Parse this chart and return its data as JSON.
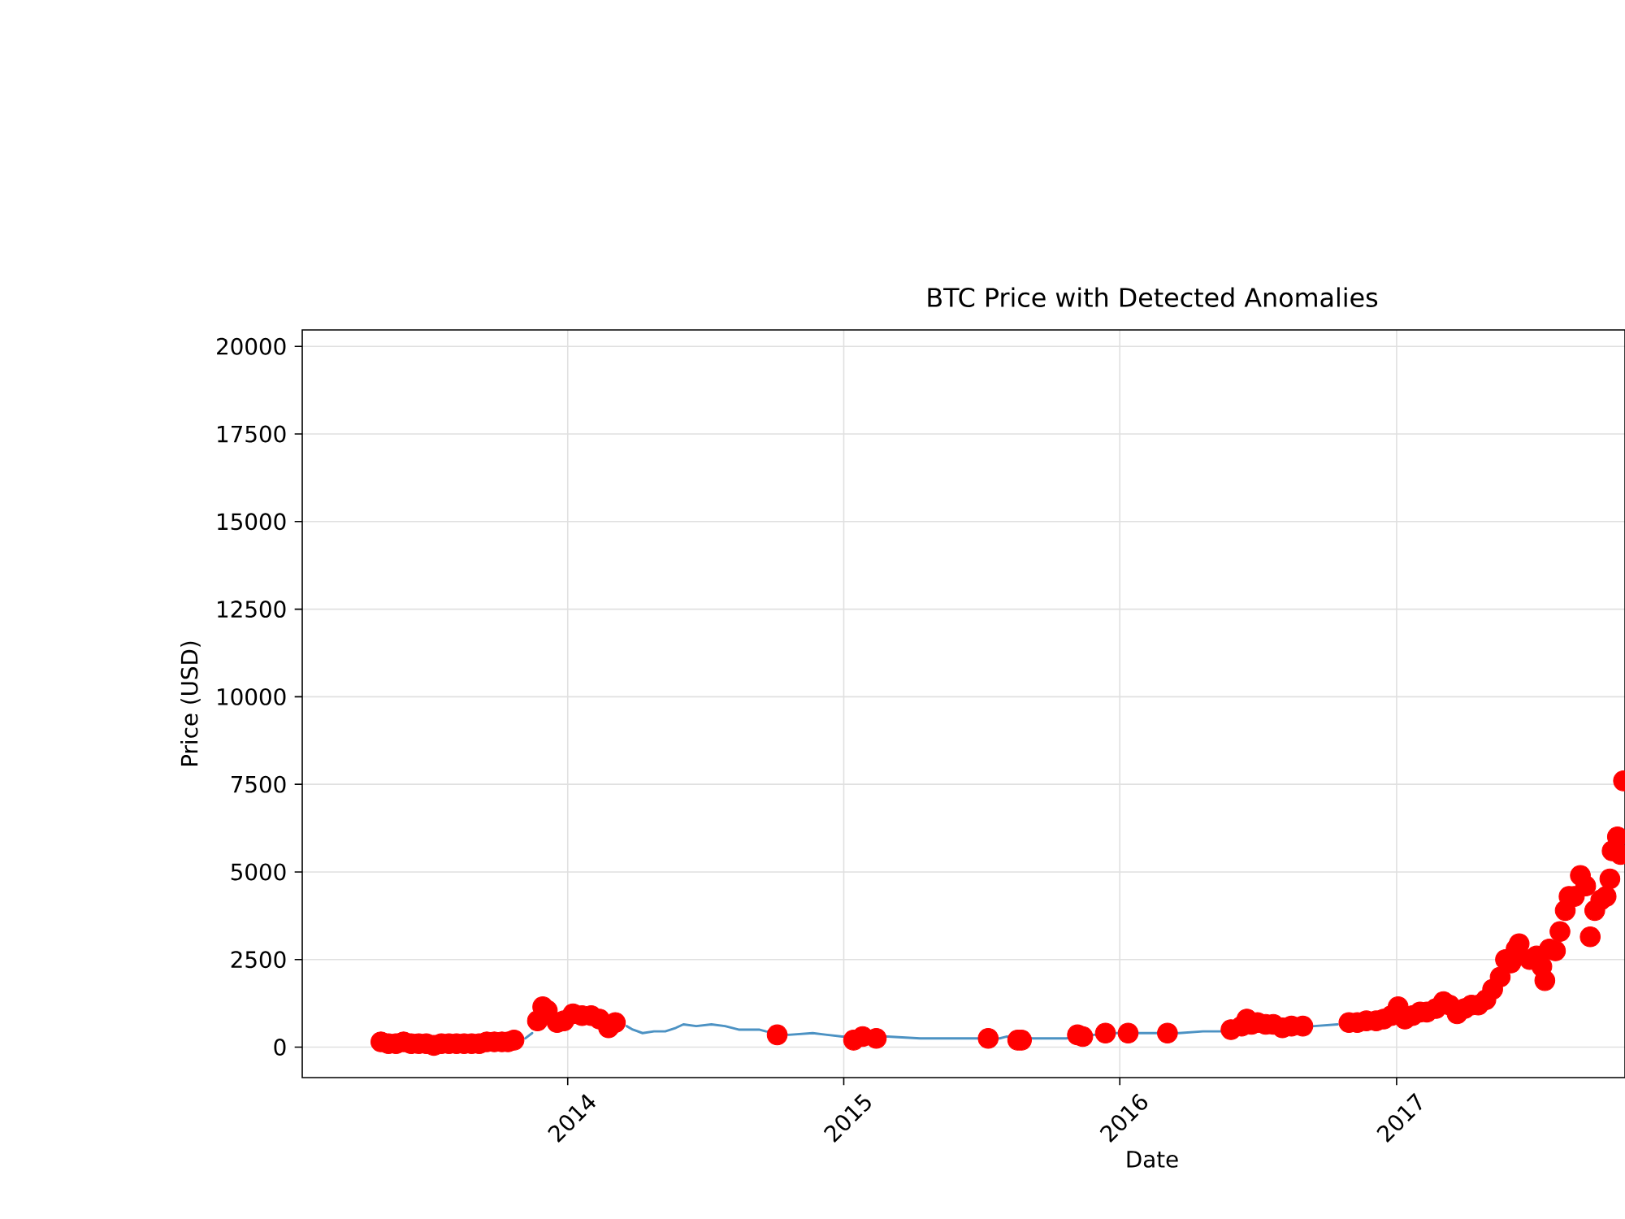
{
  "chart_data": {
    "type": "line",
    "title": "BTC Price with Detected Anomalies",
    "xlabel": "Date",
    "ylabel": "Price (USD)",
    "xlim": [
      "2013-01-15",
      "2017-10-30"
    ],
    "ylim": [
      -870,
      20470
    ],
    "xticks": [
      "2014",
      "2015",
      "2016",
      "2017"
    ],
    "yticks": [
      0,
      2500,
      5000,
      7500,
      10000,
      12500,
      15000,
      17500,
      20000
    ],
    "grid": true,
    "series": [
      {
        "color": "#4c92c3",
        "x": [
          "2013-11-06",
          "2013-11-15",
          "2013-12-15",
          "2014-03-20",
          "2014-03-28",
          "2014-04-10",
          "2014-04-25",
          "2014-05-10",
          "2014-05-24",
          "2014-06-03",
          "2014-06-20",
          "2014-07-10",
          "2014-07-28",
          "2014-08-15",
          "2014-09-11",
          "2014-09-20",
          "2014-10-20",
          "2014-11-21",
          "2014-12-10",
          "2014-12-30",
          "2015-02-28",
          "2015-04-12",
          "2015-05-15",
          "2015-06-26",
          "2015-07-26",
          "2015-08-04",
          "2015-09-08",
          "2015-10-10",
          "2015-10-22",
          "2015-11-28",
          "2015-12-28",
          "2016-01-27",
          "2016-02-18",
          "2016-03-19",
          "2016-04-20",
          "2016-05-12",
          "2016-09-14",
          "2016-10-15"
        ],
        "values": [
          250,
          400,
          null,
          600,
          500,
          400,
          450,
          450,
          550,
          650,
          600,
          650,
          600,
          500,
          500,
          450,
          350,
          400,
          350,
          300,
          300,
          250,
          250,
          250,
          250,
          300,
          250,
          250,
          250,
          350,
          400,
          400,
          400,
          400,
          450,
          450,
          600,
          650
        ]
      },
      {
        "type": "scatter",
        "color": "#ff0000",
        "marker": "circle",
        "x": [
          "2013-04-29",
          "2013-05-09",
          "2013-05-19",
          "2013-05-29",
          "2013-06-08",
          "2013-06-18",
          "2013-06-28",
          "2013-07-08",
          "2013-07-18",
          "2013-07-28",
          "2013-08-07",
          "2013-08-17",
          "2013-08-27",
          "2013-09-06",
          "2013-09-16",
          "2013-09-26",
          "2013-10-06",
          "2013-10-14",
          "2013-10-22",
          "2013-11-22",
          "2013-11-29",
          "2013-12-05",
          "2013-12-18",
          "2013-12-27",
          "2014-01-08",
          "2014-01-20",
          "2014-02-01",
          "2014-02-12",
          "2014-02-24",
          "2014-03-05",
          "2014-10-05",
          "2015-01-14",
          "2015-01-26",
          "2015-02-13",
          "2015-07-11",
          "2015-08-19",
          "2015-08-24",
          "2015-11-06",
          "2015-11-13",
          "2015-12-13",
          "2016-01-12",
          "2016-03-04",
          "2016-05-27",
          "2016-06-10",
          "2016-06-17",
          "2016-06-23",
          "2016-07-01",
          "2016-07-12",
          "2016-07-22",
          "2016-08-03",
          "2016-08-15",
          "2016-08-30",
          "2016-10-30",
          "2016-11-10",
          "2016-11-22",
          "2016-12-05",
          "2016-12-15",
          "2016-12-25",
          "2017-01-03",
          "2017-01-12",
          "2017-01-22",
          "2017-02-01",
          "2017-02-10",
          "2017-02-22",
          "2017-03-04",
          "2017-03-12",
          "2017-03-22",
          "2017-04-01",
          "2017-04-10",
          "2017-04-19",
          "2017-04-29",
          "2017-05-08",
          "2017-05-18",
          "2017-05-25",
          "2017-06-01",
          "2017-06-08",
          "2017-06-12",
          "2017-06-26",
          "2017-07-05",
          "2017-07-12",
          "2017-07-16",
          "2017-07-22",
          "2017-07-30",
          "2017-08-05",
          "2017-08-12",
          "2017-08-17",
          "2017-08-24",
          "2017-09-01",
          "2017-09-08",
          "2017-09-14",
          "2017-09-20",
          "2017-09-28",
          "2017-10-05",
          "2017-10-10",
          "2017-10-13",
          "2017-10-20",
          "2017-10-24",
          "2017-10-28"
        ],
        "values": [
          150,
          100,
          100,
          150,
          100,
          100,
          100,
          50,
          100,
          100,
          100,
          100,
          100,
          100,
          150,
          150,
          150,
          150,
          200,
          750,
          1150,
          1050,
          700,
          750,
          950,
          900,
          900,
          800,
          550,
          700,
          350,
          200,
          300,
          250,
          250,
          200,
          200,
          350,
          300,
          400,
          400,
          400,
          500,
          600,
          800,
          650,
          700,
          650,
          650,
          550,
          600,
          600,
          700,
          700,
          750,
          750,
          800,
          900,
          1150,
          800,
          900,
          1000,
          1000,
          1100,
          1300,
          1200,
          950,
          1100,
          1200,
          1200,
          1350,
          1650,
          2000,
          2500,
          2400,
          2800,
          2950,
          2500,
          2600,
          2300,
          1900,
          2800,
          2750,
          3300,
          3900,
          4300,
          4300,
          4900,
          4600,
          3150,
          3900,
          4200,
          4300,
          4800,
          5600,
          6000,
          5500,
          7600
        ]
      }
    ]
  }
}
